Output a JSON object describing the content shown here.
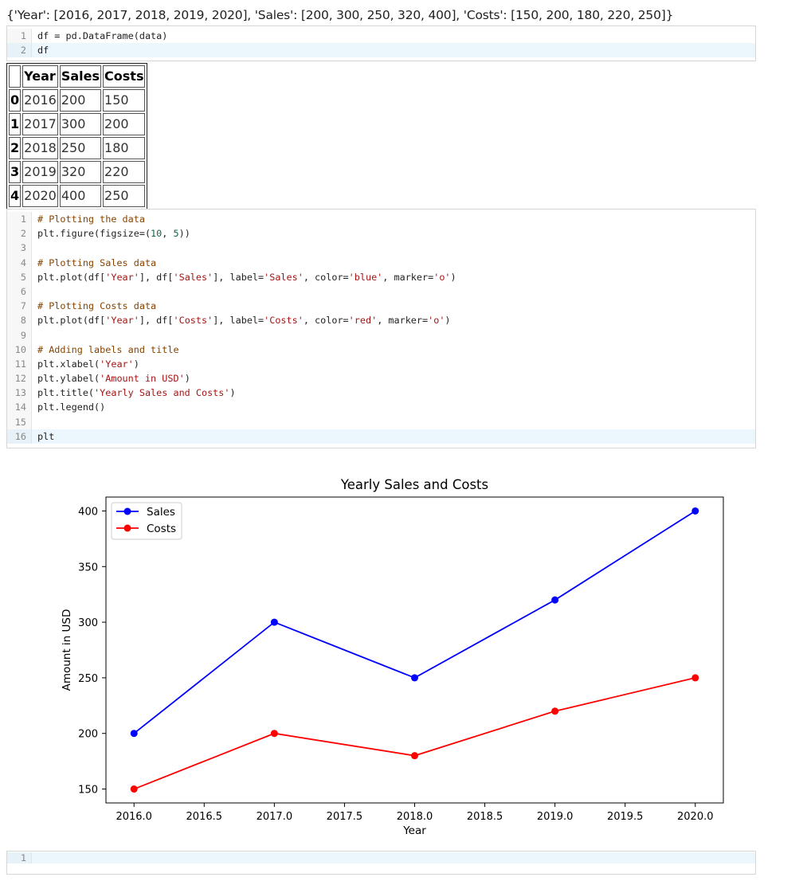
{
  "dict_output": "{'Year': [2016, 2017, 2018, 2019, 2020], 'Sales': [200, 300, 250, 320, 400], 'Costs': [150, 200, 180, 220, 250]}",
  "cell1": {
    "lines": [
      {
        "num": "1",
        "text": "df = pd.DataFrame(data)",
        "active": false
      },
      {
        "num": "2",
        "text": "df",
        "active": true
      }
    ]
  },
  "dataframe": {
    "columns": [
      "",
      "Year",
      "Sales",
      "Costs"
    ],
    "rows": [
      [
        "0",
        "2016",
        "200",
        "150"
      ],
      [
        "1",
        "2017",
        "300",
        "200"
      ],
      [
        "2",
        "2018",
        "250",
        "180"
      ],
      [
        "3",
        "2019",
        "320",
        "220"
      ],
      [
        "4",
        "2020",
        "400",
        "250"
      ]
    ]
  },
  "cell2": {
    "lines": [
      {
        "num": "1",
        "text": "# Plotting the data",
        "active": false
      },
      {
        "num": "2",
        "text": "plt.figure(figsize=(10, 5))",
        "active": false
      },
      {
        "num": "3",
        "text": "",
        "active": false
      },
      {
        "num": "4",
        "text": "# Plotting Sales data",
        "active": false
      },
      {
        "num": "5",
        "text": "plt.plot(df['Year'], df['Sales'], label='Sales', color='blue', marker='o')",
        "active": false
      },
      {
        "num": "6",
        "text": "",
        "active": false
      },
      {
        "num": "7",
        "text": "# Plotting Costs data",
        "active": false
      },
      {
        "num": "8",
        "text": "plt.plot(df['Year'], df['Costs'], label='Costs', color='red', marker='o')",
        "active": false
      },
      {
        "num": "9",
        "text": "",
        "active": false
      },
      {
        "num": "10",
        "text": "# Adding labels and title",
        "active": false
      },
      {
        "num": "11",
        "text": "plt.xlabel('Year')",
        "active": false
      },
      {
        "num": "12",
        "text": "plt.ylabel('Amount in USD')",
        "active": false
      },
      {
        "num": "13",
        "text": "plt.title('Yearly Sales and Costs')",
        "active": false
      },
      {
        "num": "14",
        "text": "plt.legend()",
        "active": false
      },
      {
        "num": "15",
        "text": "",
        "active": false
      },
      {
        "num": "16",
        "text": "plt",
        "active": true
      }
    ]
  },
  "cell3": {
    "lines": [
      {
        "num": "1",
        "text": "",
        "active": true
      }
    ]
  },
  "chart_data": {
    "type": "line",
    "title": "Yearly Sales and Costs",
    "xlabel": "Year",
    "ylabel": "Amount in USD",
    "x": [
      2016,
      2017,
      2018,
      2019,
      2020
    ],
    "series": [
      {
        "name": "Sales",
        "values": [
          200,
          300,
          250,
          320,
          400
        ],
        "color": "#0000ff",
        "marker": "o"
      },
      {
        "name": "Costs",
        "values": [
          150,
          200,
          180,
          220,
          250
        ],
        "color": "#ff0000",
        "marker": "o"
      }
    ],
    "xlim": [
      2015.8,
      2020.2
    ],
    "ylim": [
      137.5,
      412.5
    ],
    "xticks": [
      2016.0,
      2016.5,
      2017.0,
      2017.5,
      2018.0,
      2018.5,
      2019.0,
      2019.5,
      2020.0
    ],
    "xtick_labels": [
      "2016.0",
      "2016.5",
      "2017.0",
      "2017.5",
      "2018.0",
      "2018.5",
      "2019.0",
      "2019.5",
      "2020.0"
    ],
    "yticks": [
      150,
      200,
      250,
      300,
      350,
      400
    ],
    "ytick_labels": [
      "150",
      "200",
      "250",
      "300",
      "350",
      "400"
    ],
    "legend_position": "upper-left",
    "grid": false
  }
}
